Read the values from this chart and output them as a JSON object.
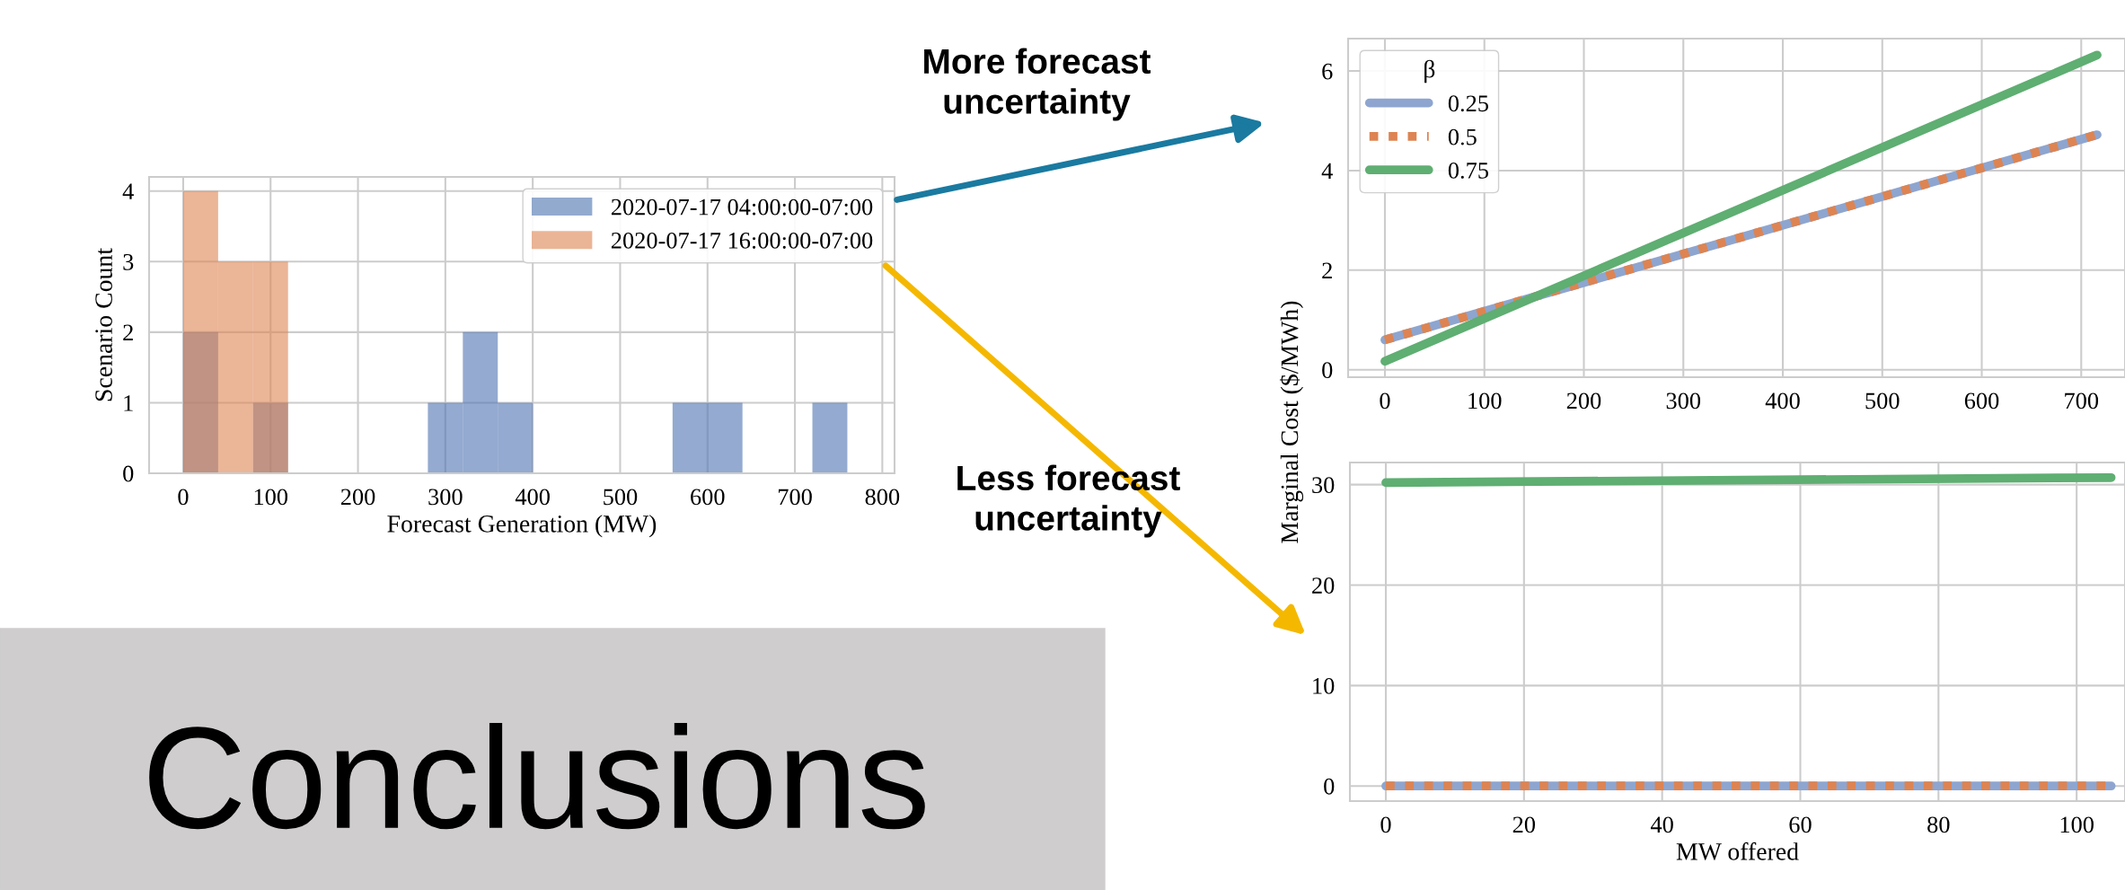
{
  "chart_data": [
    {
      "type": "histogram",
      "xlabel": "Forecast Generation (MW)",
      "ylabel": "Scenario Count",
      "bins": [
        0,
        40,
        80,
        120,
        160,
        200,
        240,
        280,
        320,
        360,
        400,
        440,
        480,
        520,
        560,
        600,
        640,
        680,
        720,
        760
      ],
      "series": [
        {
          "name": "2020-07-17 04:00:00-07:00",
          "color": "#4c72b0",
          "values": [
            2,
            0,
            1,
            0,
            0,
            0,
            0,
            1,
            2,
            1,
            0,
            0,
            0,
            0,
            1,
            1,
            0,
            0,
            1
          ]
        },
        {
          "name": "2020-07-17 16:00:00-07:00",
          "color": "#dd8452",
          "values": [
            4,
            3,
            3,
            0,
            0,
            0,
            0,
            0,
            0,
            0,
            0,
            0,
            0,
            0,
            0,
            0,
            0,
            0,
            0
          ]
        }
      ],
      "xlim": [
        -39,
        814
      ],
      "xticks": [
        0,
        100,
        200,
        300,
        400,
        500,
        600,
        700,
        800
      ],
      "ylim": [
        0,
        4.2
      ],
      "yticks": [
        0,
        1,
        2,
        3,
        4
      ],
      "grid": true,
      "legend": "top right",
      "annotations": [
        "Conclusions",
        "More forecast\nuncertainty",
        "Less forecast\nuncertainty"
      ]
    },
    {
      "type": "line",
      "ylabel": "Marginal Cost ($/MWh)",
      "legend_title": "β",
      "series": [
        {
          "name": "0.25",
          "color": "#8ea5cf",
          "x": [
            0,
            716
          ],
          "values": [
            0.6,
            4.72
          ],
          "line_style": "solid"
        },
        {
          "name": "0.5",
          "color": "#dd8452",
          "x": [
            0,
            716
          ],
          "values": [
            0.6,
            4.72
          ],
          "line_style": "dotted"
        },
        {
          "name": "0.75",
          "color": "#5fae72",
          "x": [
            0,
            716
          ],
          "values": [
            0.17,
            6.32
          ],
          "line_style": "solid"
        }
      ],
      "xlim": [
        -37,
        744
      ],
      "xticks": [
        0,
        100,
        200,
        300,
        400,
        500,
        600,
        700
      ],
      "ylim": [
        -0.15,
        6.65
      ],
      "yticks": [
        0,
        2,
        4,
        6
      ],
      "grid": true,
      "legend": "top left"
    },
    {
      "type": "line",
      "xlabel": "MW offered",
      "series": [
        {
          "color": "#5fae72",
          "x": [
            0,
            105
          ],
          "values": [
            30.2,
            30.7
          ],
          "line_style": "solid"
        },
        {
          "color": "#8ea5cf",
          "x": [
            0,
            105
          ],
          "values": [
            0,
            0
          ],
          "line_style": "solid"
        },
        {
          "color": "#dd8452",
          "x": [
            0,
            105
          ],
          "values": [
            0,
            0
          ],
          "line_style": "dotted"
        }
      ],
      "xlim": [
        -5.2,
        107
      ],
      "xticks": [
        0,
        20,
        40,
        60,
        80,
        100
      ],
      "ylim": [
        -1.5,
        32.2
      ],
      "yticks": [
        0,
        10,
        20,
        30
      ],
      "grid": true
    }
  ]
}
